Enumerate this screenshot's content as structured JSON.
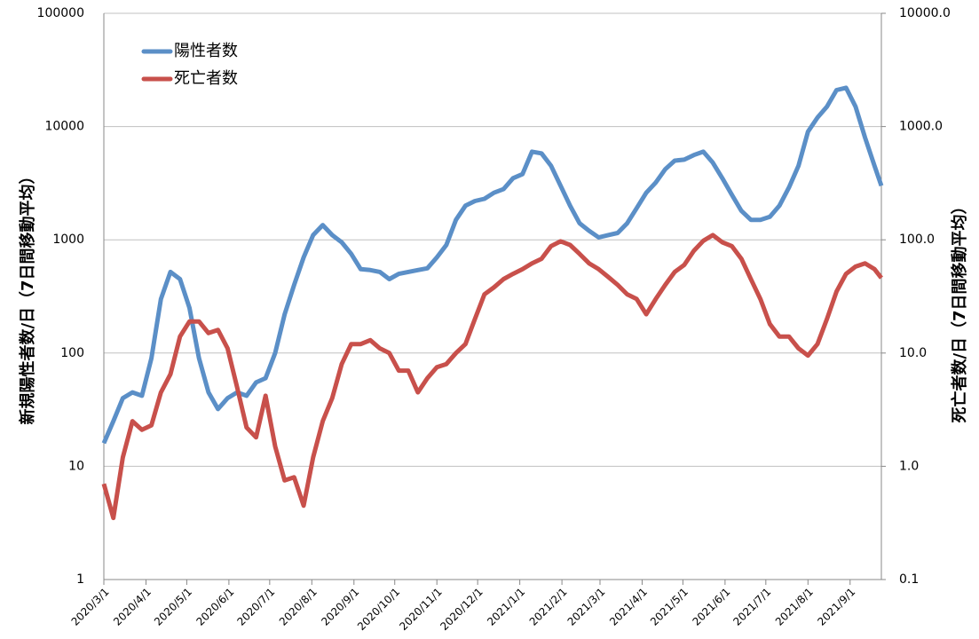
{
  "chart_data": {
    "type": "line",
    "y_label": "新規陽性者数/日（7日間移動平均）",
    "y2_label": "死亡者数/日（7日間移動平均）",
    "x": [
      "2020/3/1",
      "2020/3/8",
      "2020/3/15",
      "2020/3/22",
      "2020/3/29",
      "2020/4/5",
      "2020/4/12",
      "2020/4/19",
      "2020/4/26",
      "2020/5/3",
      "2020/5/10",
      "2020/5/17",
      "2020/5/24",
      "2020/5/31",
      "2020/6/7",
      "2020/6/14",
      "2020/6/21",
      "2020/6/28",
      "2020/7/5",
      "2020/7/12",
      "2020/7/19",
      "2020/7/26",
      "2020/8/2",
      "2020/8/9",
      "2020/8/16",
      "2020/8/23",
      "2020/8/30",
      "2020/9/6",
      "2020/9/13",
      "2020/9/20",
      "2020/9/27",
      "2020/10/4",
      "2020/10/11",
      "2020/10/18",
      "2020/10/25",
      "2020/11/1",
      "2020/11/8",
      "2020/11/15",
      "2020/11/22",
      "2020/11/29",
      "2020/12/6",
      "2020/12/13",
      "2020/12/20",
      "2020/12/27",
      "2021/1/3",
      "2021/1/10",
      "2021/1/17",
      "2021/1/24",
      "2021/1/31",
      "2021/2/7",
      "2021/2/14",
      "2021/2/21",
      "2021/2/28",
      "2021/3/7",
      "2021/3/14",
      "2021/3/21",
      "2021/3/28",
      "2021/4/4",
      "2021/4/11",
      "2021/4/18",
      "2021/4/25",
      "2021/5/2",
      "2021/5/9",
      "2021/5/16",
      "2021/5/23",
      "2021/5/30",
      "2021/6/6",
      "2021/6/13",
      "2021/6/20",
      "2021/6/27",
      "2021/7/4",
      "2021/7/11",
      "2021/7/18",
      "2021/7/25",
      "2021/8/1",
      "2021/8/8",
      "2021/8/15",
      "2021/8/22",
      "2021/8/29",
      "2021/9/5",
      "2021/9/12",
      "2021/9/19",
      "2021/9/24"
    ],
    "series": [
      {
        "name": "陽性者数",
        "color": "#5b8fc7",
        "axis": "y",
        "values": [
          16,
          25,
          40,
          45,
          42,
          90,
          300,
          520,
          450,
          250,
          90,
          45,
          32,
          40,
          45,
          42,
          55,
          60,
          100,
          220,
          400,
          700,
          1100,
          1350,
          1100,
          950,
          750,
          550,
          540,
          520,
          450,
          500,
          520,
          540,
          560,
          700,
          900,
          1500,
          2000,
          2200,
          2300,
          2600,
          2800,
          3500,
          3800,
          6000,
          5800,
          4500,
          3000,
          2000,
          1400,
          1200,
          1050,
          1100,
          1150,
          1400,
          1900,
          2600,
          3200,
          4200,
          5000,
          5100,
          5600,
          6000,
          4800,
          3500,
          2500,
          1800,
          1500,
          1500,
          1600,
          2000,
          2900,
          4500,
          9000,
          12000,
          15000,
          21000,
          22000,
          15000,
          8000,
          4500,
          3000
        ]
      },
      {
        "name": "死亡者数",
        "color": "#c8504b",
        "axis": "y2",
        "values": [
          0.7,
          0.35,
          1.2,
          2.5,
          2.1,
          2.3,
          4.5,
          6.5,
          14,
          19,
          19,
          15,
          16,
          11,
          5,
          2.2,
          1.8,
          4.2,
          1.5,
          0.75,
          0.8,
          0.45,
          1.2,
          2.5,
          4,
          8,
          12,
          12,
          13,
          11,
          10,
          7,
          7,
          4.5,
          6,
          7.5,
          8,
          10,
          12,
          20,
          33,
          38,
          45,
          50,
          55,
          62,
          68,
          88,
          97,
          90,
          75,
          62,
          55,
          47,
          40,
          33,
          30,
          22,
          30,
          40,
          52,
          60,
          80,
          98,
          110,
          95,
          88,
          68,
          45,
          30,
          18,
          14,
          14,
          11,
          9.5,
          12,
          20,
          35,
          50,
          58,
          62,
          55,
          46
        ]
      }
    ],
    "xlim": [
      "2020/3/1",
      "2021/9/24"
    ],
    "xticks": [
      "2020/3/1",
      "2020/4/1",
      "2020/5/1",
      "2020/6/1",
      "2020/7/1",
      "2020/8/1",
      "2020/9/1",
      "2020/10/1",
      "2020/11/1",
      "2020/12/1",
      "2021/1/1",
      "2021/2/1",
      "2021/3/1",
      "2021/4/1",
      "2021/5/1",
      "2021/6/1",
      "2021/7/1",
      "2021/8/1",
      "2021/9/1"
    ],
    "ylim": [
      1,
      100000
    ],
    "yticks": [
      1,
      10,
      100,
      1000,
      10000,
      100000
    ],
    "ylog": true,
    "y2lim": [
      0.1,
      10000
    ],
    "y2ticks": [
      0.1,
      {
        "value": 1,
        "label": "1.0"
      },
      {
        "value": 10,
        "label": "10.0"
      },
      {
        "value": 100,
        "label": "100.0"
      },
      {
        "value": 1000,
        "label": "1000.0"
      },
      {
        "value": 10000,
        "label": "10000.0"
      }
    ],
    "y2log": true,
    "grid": true,
    "legend": "top-left"
  }
}
